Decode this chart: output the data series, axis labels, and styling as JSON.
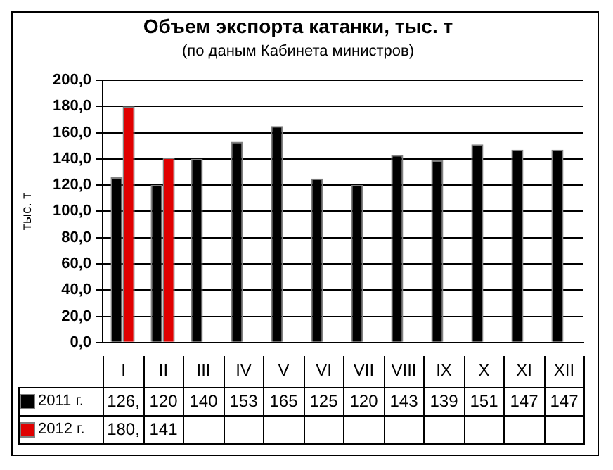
{
  "chart_data": {
    "type": "bar",
    "title": "Объем экспорта катанки, тыс. т",
    "subtitle": "(по даным Кабинета министров)",
    "ylabel": "тыс. т",
    "categories": [
      "I",
      "II",
      "III",
      "IV",
      "V",
      "VI",
      "VII",
      "VIII",
      "IX",
      "X",
      "XI",
      "XII"
    ],
    "series": [
      {
        "name": "2011 г.",
        "color": "#000000",
        "values": [
          126,
          120,
          140,
          153,
          165,
          125,
          120,
          143,
          139,
          151,
          147,
          147
        ],
        "value_labels": [
          "126,",
          "120",
          "140",
          "153",
          "165",
          "125",
          "120",
          "143",
          "139",
          "151",
          "147",
          "147"
        ]
      },
      {
        "name": "2012 г.",
        "color": "#e00000",
        "values": [
          180,
          141,
          null,
          null,
          null,
          null,
          null,
          null,
          null,
          null,
          null,
          null
        ],
        "value_labels": [
          "180,",
          "141",
          null,
          null,
          null,
          null,
          null,
          null,
          null,
          null,
          null,
          null
        ]
      }
    ],
    "ylim": [
      0,
      200
    ],
    "yticks": [
      {
        "value": 0,
        "label": "0,0"
      },
      {
        "value": 20,
        "label": "20,0"
      },
      {
        "value": 40,
        "label": "40,0"
      },
      {
        "value": 60,
        "label": "60,0"
      },
      {
        "value": 80,
        "label": "80,0"
      },
      {
        "value": 100,
        "label": "100,0"
      },
      {
        "value": 120,
        "label": "120,0"
      },
      {
        "value": 140,
        "label": "140,0"
      },
      {
        "value": 160,
        "label": "160,0"
      },
      {
        "value": 180,
        "label": "180,0"
      },
      {
        "value": 200,
        "label": "200,0"
      }
    ],
    "grid": "y",
    "legend": "bottom"
  }
}
